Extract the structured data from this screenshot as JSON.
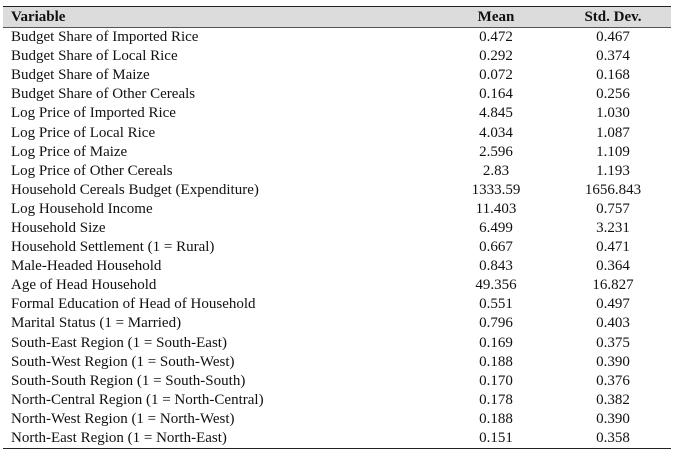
{
  "table": {
    "headers": [
      "Variable",
      "Mean",
      "Std. Dev."
    ],
    "rows": [
      [
        "Budget Share of Imported Rice",
        "0.472",
        "0.467"
      ],
      [
        "Budget Share of Local Rice",
        "0.292",
        "0.374"
      ],
      [
        "Budget Share of Maize",
        "0.072",
        "0.168"
      ],
      [
        "Budget Share of Other Cereals",
        "0.164",
        "0.256"
      ],
      [
        "Log Price of Imported Rice",
        "4.845",
        "1.030"
      ],
      [
        "Log Price of Local Rice",
        "4.034",
        "1.087"
      ],
      [
        "Log Price of Maize",
        "2.596",
        "1.109"
      ],
      [
        "Log Price of Other Cereals",
        "2.83",
        "1.193"
      ],
      [
        "Household Cereals Budget (Expenditure)",
        "1333.59",
        "1656.843"
      ],
      [
        "Log Household Income",
        "11.403",
        "0.757"
      ],
      [
        "Household Size",
        "6.499",
        "3.231"
      ],
      [
        "Household Settlement (1 = Rural)",
        "0.667",
        "0.471"
      ],
      [
        "Male-Headed Household",
        "0.843",
        "0.364"
      ],
      [
        "Age of Head Household",
        "49.356",
        "16.827"
      ],
      [
        "Formal Education of Head of Household",
        "0.551",
        "0.497"
      ],
      [
        "Marital Status (1 = Married)",
        "0.796",
        "0.403"
      ],
      [
        "South-East Region (1 = South-East)",
        "0.169",
        "0.375"
      ],
      [
        "South-West Region (1 = South-West)",
        "0.188",
        "0.390"
      ],
      [
        "South-South Region (1 = South-South)",
        "0.170",
        "0.376"
      ],
      [
        "North-Central Region (1 = North-Central)",
        "0.178",
        "0.382"
      ],
      [
        "North-West Region (1 = North-West)",
        "0.188",
        "0.390"
      ],
      [
        "North-East Region (1 = North-East)",
        "0.151",
        "0.358"
      ]
    ]
  }
}
